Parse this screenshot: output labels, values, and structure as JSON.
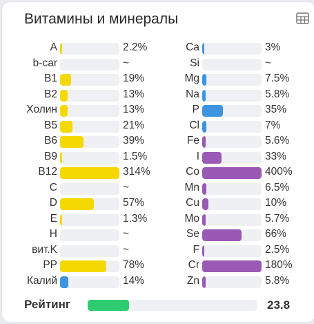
{
  "card": {
    "title": "Витамины и минералы",
    "table_icon": "table-icon"
  },
  "colors": {
    "vitamin": "#f5d800",
    "blue": "#3d94e0",
    "purple": "#9b59b6",
    "rating": "#2ecc71",
    "track": "#eff0f3"
  },
  "vitamins": [
    {
      "label": "A",
      "value": "2.2%",
      "pct": 2.2,
      "color": "#f5d800"
    },
    {
      "label": "b-car",
      "value": "~",
      "pct": 0,
      "color": "#f5d800"
    },
    {
      "label": "B1",
      "value": "19%",
      "pct": 19,
      "color": "#f5d800"
    },
    {
      "label": "B2",
      "value": "13%",
      "pct": 13,
      "color": "#f5d800"
    },
    {
      "label": "Холин",
      "value": "13%",
      "pct": 13,
      "color": "#f5d800"
    },
    {
      "label": "B5",
      "value": "21%",
      "pct": 21,
      "color": "#f5d800"
    },
    {
      "label": "B6",
      "value": "39%",
      "pct": 39,
      "color": "#f5d800"
    },
    {
      "label": "B9",
      "value": "1.5%",
      "pct": 1.5,
      "color": "#f5d800"
    },
    {
      "label": "B12",
      "value": "314%",
      "pct": 314,
      "color": "#f5d800"
    },
    {
      "label": "C",
      "value": "~",
      "pct": 0,
      "color": "#f5d800"
    },
    {
      "label": "D",
      "value": "57%",
      "pct": 57,
      "color": "#f5d800"
    },
    {
      "label": "E",
      "value": "1.3%",
      "pct": 1.3,
      "color": "#f5d800"
    },
    {
      "label": "H",
      "value": "~",
      "pct": 0,
      "color": "#f5d800"
    },
    {
      "label": "вит.K",
      "value": "~",
      "pct": 0,
      "color": "#f5d800"
    },
    {
      "label": "PP",
      "value": "78%",
      "pct": 78,
      "color": "#f5d800"
    },
    {
      "label": "Калий",
      "value": "14%",
      "pct": 14,
      "color": "#3d94e0"
    }
  ],
  "minerals": [
    {
      "label": "Ca",
      "value": "3%",
      "pct": 3,
      "color": "#3d94e0"
    },
    {
      "label": "Si",
      "value": "~",
      "pct": 0,
      "color": "#3d94e0"
    },
    {
      "label": "Mg",
      "value": "7.5%",
      "pct": 7.5,
      "color": "#3d94e0"
    },
    {
      "label": "Na",
      "value": "5.8%",
      "pct": 5.8,
      "color": "#3d94e0"
    },
    {
      "label": "P",
      "value": "35%",
      "pct": 35,
      "color": "#3d94e0"
    },
    {
      "label": "Cl",
      "value": "7%",
      "pct": 7,
      "color": "#3d94e0"
    },
    {
      "label": "Fe",
      "value": "5.6%",
      "pct": 5.6,
      "color": "#9b59b6"
    },
    {
      "label": "I",
      "value": "33%",
      "pct": 33,
      "color": "#9b59b6"
    },
    {
      "label": "Co",
      "value": "400%",
      "pct": 400,
      "color": "#9b59b6"
    },
    {
      "label": "Mn",
      "value": "6.5%",
      "pct": 6.5,
      "color": "#9b59b6"
    },
    {
      "label": "Cu",
      "value": "10%",
      "pct": 10,
      "color": "#9b59b6"
    },
    {
      "label": "Mo",
      "value": "5.7%",
      "pct": 5.7,
      "color": "#9b59b6"
    },
    {
      "label": "Se",
      "value": "66%",
      "pct": 66,
      "color": "#9b59b6"
    },
    {
      "label": "F",
      "value": "2.5%",
      "pct": 2.5,
      "color": "#9b59b6"
    },
    {
      "label": "Cr",
      "value": "180%",
      "pct": 180,
      "color": "#9b59b6"
    },
    {
      "label": "Zn",
      "value": "5.8%",
      "pct": 5.8,
      "color": "#9b59b6"
    }
  ],
  "rating": {
    "label": "Рейтинг",
    "value": "23.8",
    "fill_fraction": 0.245,
    "color": "#2ecc71"
  }
}
